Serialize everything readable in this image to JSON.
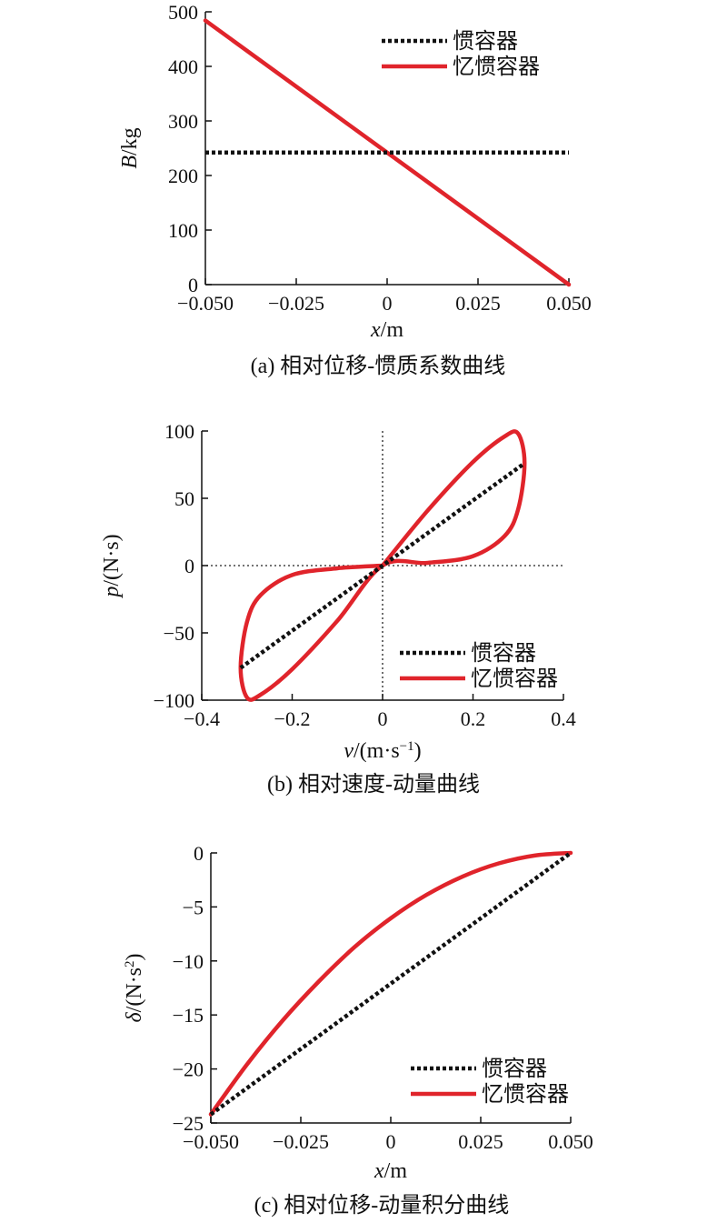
{
  "chart_data": [
    {
      "type": "line",
      "caption": "(a) 相对位移-惯质系数曲线",
      "xlabel": "x/m",
      "ylabel": "B/kg",
      "xlim": [
        -0.05,
        0.05
      ],
      "ylim": [
        0,
        500
      ],
      "xticks": [
        "−0.050",
        "−0.025",
        "0",
        "0.025",
        "0.050"
      ],
      "yticks": [
        "0",
        "100",
        "200",
        "300",
        "400",
        "500"
      ],
      "legend_position": "top-right",
      "series": [
        {
          "name": "惯容器",
          "style": "dotted",
          "color": "#111111",
          "x": [
            -0.05,
            0.05
          ],
          "y": [
            242,
            242
          ]
        },
        {
          "name": "忆惯容器",
          "style": "solid",
          "color": "#e0242b",
          "x": [
            -0.05,
            0.05
          ],
          "y": [
            484,
            0
          ]
        }
      ]
    },
    {
      "type": "line",
      "caption": "(b) 相对速度-动量曲线",
      "xlabel": "v/(m·s−1)",
      "ylabel": "p/(N·s)",
      "xlim": [
        -0.4,
        0.4
      ],
      "ylim": [
        -100,
        100
      ],
      "xticks": [
        "−0.4",
        "−0.2",
        "0",
        "0.2",
        "0.4"
      ],
      "yticks": [
        "−100",
        "−50",
        "0",
        "50",
        "100"
      ],
      "reference_lines": "dotted lines at x=0 and y=0",
      "legend_position": "bottom-right",
      "series": [
        {
          "name": "惯容器",
          "style": "dotted",
          "color": "#111111",
          "x": [
            -0.314,
            0.314
          ],
          "y": [
            -76,
            76
          ]
        },
        {
          "name": "忆惯容器",
          "style": "solid",
          "color": "#e0242b",
          "shape": "figure-eight loop",
          "x": [
            0,
            0.1,
            0.2,
            0.27,
            0.3,
            0.314,
            0.3,
            0.27,
            0.2,
            0.1,
            0,
            -0.1,
            -0.2,
            -0.27,
            -0.3,
            -0.314,
            -0.3,
            -0.27,
            -0.2,
            -0.1,
            0
          ],
          "y": [
            0,
            41,
            77,
            96,
            98,
            76,
            42,
            22,
            7,
            2,
            0,
            -41,
            -77,
            -96,
            -98,
            -76,
            -42,
            -22,
            -7,
            -2,
            0
          ]
        }
      ]
    },
    {
      "type": "line",
      "caption": "(c) 相对位移-动量积分曲线",
      "xlabel": "x/m",
      "ylabel": "δ/(N·s2)",
      "xlim": [
        -0.05,
        0.05
      ],
      "ylim": [
        -25,
        0
      ],
      "xticks": [
        "−0.050",
        "−0.025",
        "0",
        "0.025",
        "0.050"
      ],
      "yticks": [
        "−25",
        "−20",
        "−15",
        "−10",
        "−5",
        "0"
      ],
      "legend_position": "bottom-right",
      "series": [
        {
          "name": "惯容器",
          "style": "dotted",
          "color": "#111111",
          "x": [
            -0.05,
            0.05
          ],
          "y": [
            -24.2,
            0
          ]
        },
        {
          "name": "忆惯容器",
          "style": "solid",
          "color": "#e0242b",
          "x": [
            -0.05,
            -0.04,
            -0.03,
            -0.02,
            -0.01,
            0,
            0.01,
            0.02,
            0.03,
            0.04,
            0.05
          ],
          "y": [
            -24.2,
            -19.6,
            -15.5,
            -11.9,
            -8.7,
            -6.05,
            -3.87,
            -2.18,
            -0.97,
            -0.24,
            0
          ]
        }
      ]
    }
  ]
}
